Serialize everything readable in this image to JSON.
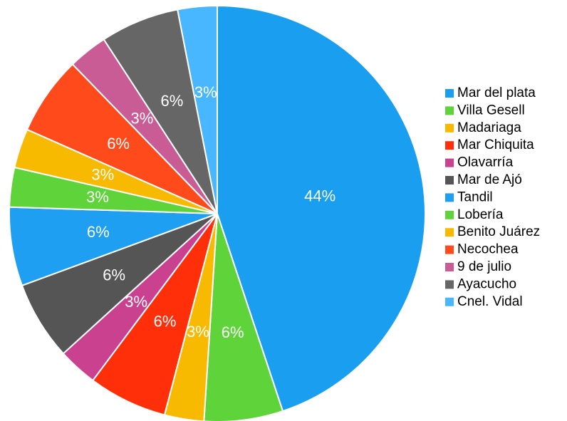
{
  "chart_data": {
    "type": "pie",
    "categories": [
      "Mar del plata",
      "Villa Gesell",
      "Madariaga",
      "Mar Chiquita",
      "Olavarría",
      "Mar de Ajó",
      "Tandil",
      "Lobería",
      "Benito Juárez",
      "Necochea",
      "9 de julio",
      "Ayacucho",
      "Cnel. Vidal"
    ],
    "values": [
      44,
      6,
      3,
      6,
      3,
      6,
      6,
      3,
      3,
      6,
      3,
      6,
      3
    ],
    "value_labels": [
      "44%",
      "6%",
      "3%",
      "6%",
      "3%",
      "6%",
      "6%",
      "3%",
      "3%",
      "6%",
      "3%",
      "6%",
      "3%"
    ],
    "colors": [
      "#1a9ff0",
      "#5fd33a",
      "#f8ba00",
      "#ff2f0a",
      "#c9418f",
      "#555555",
      "#1e9ff2",
      "#5fd33a",
      "#f8ba00",
      "#ff4a1c",
      "#c95b95",
      "#666666",
      "#48b7ff"
    ],
    "legend": "right"
  }
}
